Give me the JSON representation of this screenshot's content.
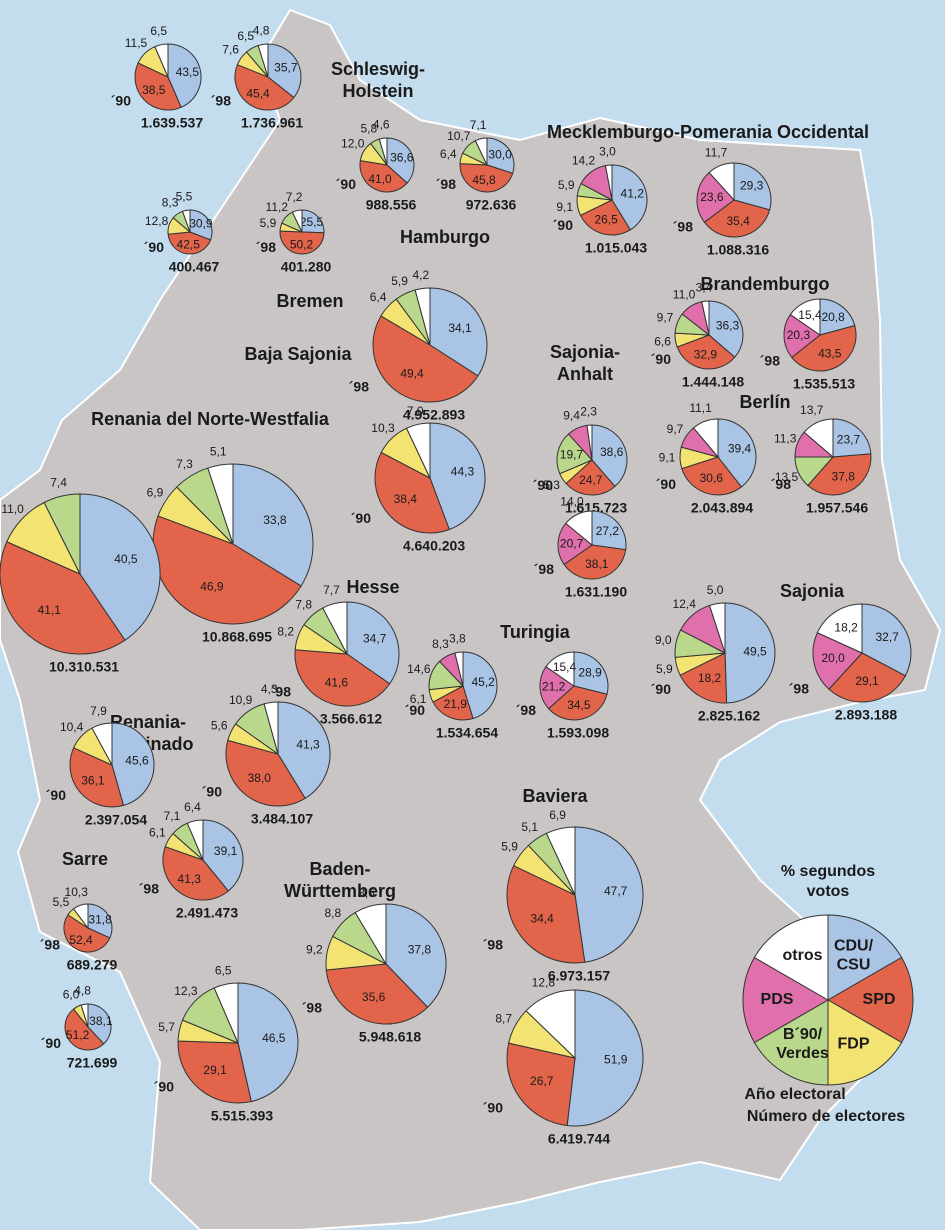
{
  "map": {
    "legend": {
      "title": [
        "% segundos",
        "votos"
      ],
      "parties": [
        {
          "label": [
            "CDU/",
            "CSU"
          ],
          "color": "#a9c4e4"
        },
        {
          "label": [
            "SPD"
          ],
          "color": "#e2654b"
        },
        {
          "label": [
            "FDP"
          ],
          "color": "#f2e373"
        },
        {
          "label": [
            "B´90/",
            "Verdes"
          ],
          "color": "#b9d88b"
        },
        {
          "label": [
            "PDS"
          ],
          "color": "#e070ab"
        },
        {
          "label": [
            "otros"
          ],
          "color": "#ffffff"
        }
      ],
      "year_note": "Año electoral",
      "electors_note": "Número de electores"
    },
    "states": [
      {
        "name": [
          "Schleswig-",
          "Holstein"
        ],
        "elections": [
          {
            "year": "´90",
            "electors": "1.639.537",
            "values": [
              43.5,
              38.5,
              11.5,
              null,
              null,
              6.5
            ],
            "value_labels": [
              "43,5",
              "38,5",
              "11,5",
              null,
              null,
              "6,5"
            ]
          },
          {
            "year": "´98",
            "electors": "1.736.961",
            "values": [
              35.7,
              45.4,
              7.6,
              6.5,
              null,
              4.8
            ],
            "value_labels": [
              "35,7",
              "45,4",
              "7,6",
              "6,5",
              null,
              "4,8"
            ]
          }
        ]
      },
      {
        "name": [
          "Hamburgo"
        ],
        "elections": [
          {
            "year": "´90",
            "electors": "988.556",
            "values": [
              36.6,
              41.0,
              12.0,
              5.8,
              null,
              4.6
            ],
            "value_labels": [
              "36,6",
              "41,0",
              "12,0",
              "5,8",
              null,
              "4,6"
            ]
          },
          {
            "year": "´98",
            "electors": "972.636",
            "values": [
              30.0,
              45.8,
              6.4,
              10.7,
              null,
              7.1
            ],
            "value_labels": [
              "30,0",
              "45,8",
              "6,4",
              "10,7",
              null,
              "7,1"
            ]
          }
        ]
      },
      {
        "name": [
          "Mecklemburgo-Pomerania Occidental"
        ],
        "elections": [
          {
            "year": "´90",
            "electors": "1.015.043",
            "values": [
              41.2,
              26.5,
              9.1,
              5.9,
              14.2,
              3.0
            ],
            "value_labels": [
              "41,2",
              "26,5",
              "9,1",
              "5,9",
              "14,2",
              "3,0"
            ]
          },
          {
            "year": "´98",
            "electors": "1.088.316",
            "values": [
              29.3,
              35.4,
              null,
              null,
              23.6,
              11.7
            ],
            "value_labels": [
              "29,3",
              "35,4",
              null,
              null,
              "23,6",
              "11,7"
            ]
          }
        ]
      },
      {
        "name": [
          "Bremen"
        ],
        "elections": [
          {
            "year": "´90",
            "electors": "400.467",
            "values": [
              30.9,
              42.5,
              12.8,
              8.3,
              null,
              5.5
            ],
            "value_labels": [
              "30,9",
              "42,5",
              "12,8",
              "8,3",
              null,
              "5,5"
            ]
          },
          {
            "year": "´98",
            "electors": "401.280",
            "values": [
              25.5,
              50.2,
              5.9,
              11.2,
              null,
              7.2
            ],
            "value_labels": [
              "25,5",
              "50,2",
              "5,9",
              "11,2",
              null,
              "7,2"
            ]
          }
        ]
      },
      {
        "name": [
          "Baja Sajonia"
        ],
        "elections": [
          {
            "year": "´98",
            "electors": "4.952.893",
            "values": [
              34.1,
              49.4,
              6.4,
              5.9,
              null,
              4.2
            ],
            "value_labels": [
              "34,1",
              "49,4",
              "6,4",
              "5,9",
              null,
              "4,2"
            ]
          },
          {
            "year": "´90",
            "electors": "4.640.203",
            "values": [
              44.3,
              38.4,
              10.3,
              null,
              null,
              7.0
            ],
            "value_labels": [
              "44,3",
              "38,4",
              "10,3",
              null,
              null,
              "7,0"
            ]
          }
        ]
      },
      {
        "name": [
          "Renania del Norte-Westfalia"
        ],
        "elections": [
          {
            "year": "´98",
            "electors": "10.868.695",
            "values": [
              33.8,
              46.9,
              6.9,
              7.3,
              null,
              5.1
            ],
            "value_labels": [
              "33,8",
              "46,9",
              "6,9",
              "7,3",
              null,
              "5,1"
            ]
          },
          {
            "year": "´90",
            "electors": "10.310.531",
            "values": [
              40.5,
              41.1,
              11.0,
              7.4,
              null,
              null
            ],
            "value_labels": [
              "40,5",
              "41,1",
              "11,0",
              "7,4",
              null,
              null
            ]
          }
        ]
      },
      {
        "name": [
          "Sajonia-",
          "Anhalt"
        ],
        "elections": [
          {
            "year": "´90",
            "electors": "1.615.723",
            "values": [
              38.6,
              24.7,
              5.3,
              19.7,
              9.4,
              2.3
            ],
            "value_labels": [
              "38,6",
              "24,7",
              "5,3",
              "19,7",
              "9,4",
              "2,3"
            ]
          },
          {
            "year": "´98",
            "electors": "1.631.190",
            "values": [
              27.2,
              38.1,
              null,
              null,
              20.7,
              14.0
            ],
            "value_labels": [
              "27,2",
              "38,1",
              null,
              null,
              "20,7",
              "14,0"
            ]
          }
        ]
      },
      {
        "name": [
          "Brandemburgo"
        ],
        "elections": [
          {
            "year": "´90",
            "electors": "1.444.148",
            "values": [
              36.3,
              32.9,
              6.6,
              9.7,
              11.0,
              3.4
            ],
            "value_labels": [
              "36,3",
              "32,9",
              "6,6",
              "9,7",
              "11,0",
              "3,4"
            ]
          },
          {
            "year": "´98",
            "electors": "1.535.513",
            "values": [
              20.8,
              43.5,
              null,
              null,
              20.3,
              15.4
            ],
            "value_labels": [
              "20,8",
              "43,5",
              null,
              null,
              "20,3",
              "15,4"
            ]
          }
        ]
      },
      {
        "name": [
          "Berlín"
        ],
        "elections": [
          {
            "year": "´90",
            "electors": "2.043.894",
            "values": [
              39.4,
              30.6,
              9.1,
              null,
              9.7,
              11.1
            ],
            "value_labels": [
              "39,4",
              "30,6",
              "9,1",
              null,
              "9,7",
              "11,1"
            ]
          },
          {
            "year": "´98",
            "electors": "1.957.546",
            "values": [
              23.7,
              37.8,
              null,
              13.5,
              11.3,
              13.7
            ],
            "value_labels": [
              "23,7",
              "37,8",
              null,
              "13,5",
              "11,3",
              "13,7"
            ]
          }
        ]
      },
      {
        "name": [
          "Hesse"
        ],
        "elections": [
          {
            "year": "´98",
            "electors": "3.566.612",
            "values": [
              34.7,
              41.6,
              8.2,
              7.8,
              null,
              7.7
            ],
            "value_labels": [
              "34,7",
              "41,6",
              "8,2",
              "7,8",
              null,
              "7,7"
            ]
          },
          {
            "year": "´90",
            "electors": "3.484.107",
            "values": [
              41.3,
              38.0,
              5.6,
              10.9,
              null,
              4.3
            ],
            "value_labels": [
              "41,3",
              "38,0",
              "5,6",
              "10,9",
              null,
              "4,3"
            ]
          }
        ]
      },
      {
        "name": [
          "Turingia"
        ],
        "elections": [
          {
            "year": "´90",
            "electors": "1.534.654",
            "values": [
              45.2,
              21.9,
              6.1,
              14.6,
              8.3,
              3.8
            ],
            "value_labels": [
              "45,2",
              "21,9",
              "6,1",
              "14,6",
              "8,3",
              "3,8"
            ]
          },
          {
            "year": "´98",
            "electors": "1.593.098",
            "values": [
              28.9,
              34.5,
              null,
              null,
              21.2,
              15.4
            ],
            "value_labels": [
              "28,9",
              "34,5",
              null,
              null,
              "21,2",
              "15,4"
            ]
          }
        ]
      },
      {
        "name": [
          "Sajonia"
        ],
        "elections": [
          {
            "year": "´90",
            "electors": "2.825.162",
            "values": [
              49.5,
              18.2,
              5.9,
              9.0,
              12.4,
              5.0
            ],
            "value_labels": [
              "49,5",
              "18,2",
              "5,9",
              "9,0",
              "12,4",
              "5,0"
            ]
          },
          {
            "year": "´98",
            "electors": "2.893.188",
            "values": [
              32.7,
              29.1,
              null,
              null,
              20.0,
              18.2
            ],
            "value_labels": [
              "32,7",
              "29,1",
              null,
              null,
              "20,0",
              "18,2"
            ]
          }
        ]
      },
      {
        "name": [
          "Renania-",
          "Palatinado"
        ],
        "elections": [
          {
            "year": "´90",
            "electors": "2.397.054",
            "values": [
              45.6,
              36.1,
              10.4,
              null,
              null,
              7.9
            ],
            "value_labels": [
              "45,6",
              "36,1",
              "10,4",
              null,
              null,
              "7,9"
            ]
          },
          {
            "year": "´98",
            "electors": "2.491.473",
            "values": [
              39.1,
              41.3,
              6.1,
              7.1,
              null,
              6.4
            ],
            "value_labels": [
              "39,1",
              "41,3",
              "6,1",
              "7,1",
              null,
              "6,4"
            ]
          }
        ]
      },
      {
        "name": [
          "Sarre"
        ],
        "elections": [
          {
            "year": "´98",
            "electors": "689.279",
            "values": [
              31.8,
              52.4,
              5.5,
              null,
              null,
              10.3
            ],
            "value_labels": [
              "31,8",
              "52,4",
              "5,5",
              null,
              null,
              "10,3"
            ]
          },
          {
            "year": "´90",
            "electors": "721.699",
            "values": [
              38.1,
              51.2,
              6.0,
              null,
              null,
              4.8
            ],
            "value_labels": [
              "38,1",
              "51,2",
              "6,0",
              null,
              null,
              "4,8"
            ]
          }
        ]
      },
      {
        "name": [
          "Baden-",
          "Württemberg"
        ],
        "elections": [
          {
            "year": "´98",
            "electors": "5.948.618",
            "values": [
              37.8,
              35.6,
              9.2,
              8.8,
              null,
              8.6
            ],
            "value_labels": [
              "37,8",
              "35,6",
              "9,2",
              "8,8",
              null,
              "8,6"
            ]
          },
          {
            "year": "´90",
            "electors": "5.515.393",
            "values": [
              46.5,
              29.1,
              5.7,
              12.3,
              null,
              6.5
            ],
            "value_labels": [
              "46,5",
              "29,1",
              "5,7",
              "12,3",
              null,
              "6,5"
            ]
          }
        ]
      },
      {
        "name": [
          "Baviera"
        ],
        "elections": [
          {
            "year": "´98",
            "electors": "6.973.157",
            "values": [
              47.7,
              34.4,
              5.9,
              5.1,
              null,
              6.9
            ],
            "value_labels": [
              "47,7",
              "34,4",
              "5,9",
              "5,1",
              null,
              "6,9"
            ]
          },
          {
            "year": "´90",
            "electors": "6.419.744",
            "values": [
              51.9,
              26.7,
              8.7,
              null,
              null,
              12.8
            ],
            "value_labels": [
              "51,9",
              "26,7",
              "8,7",
              null,
              null,
              "12,8"
            ]
          }
        ]
      }
    ]
  }
}
